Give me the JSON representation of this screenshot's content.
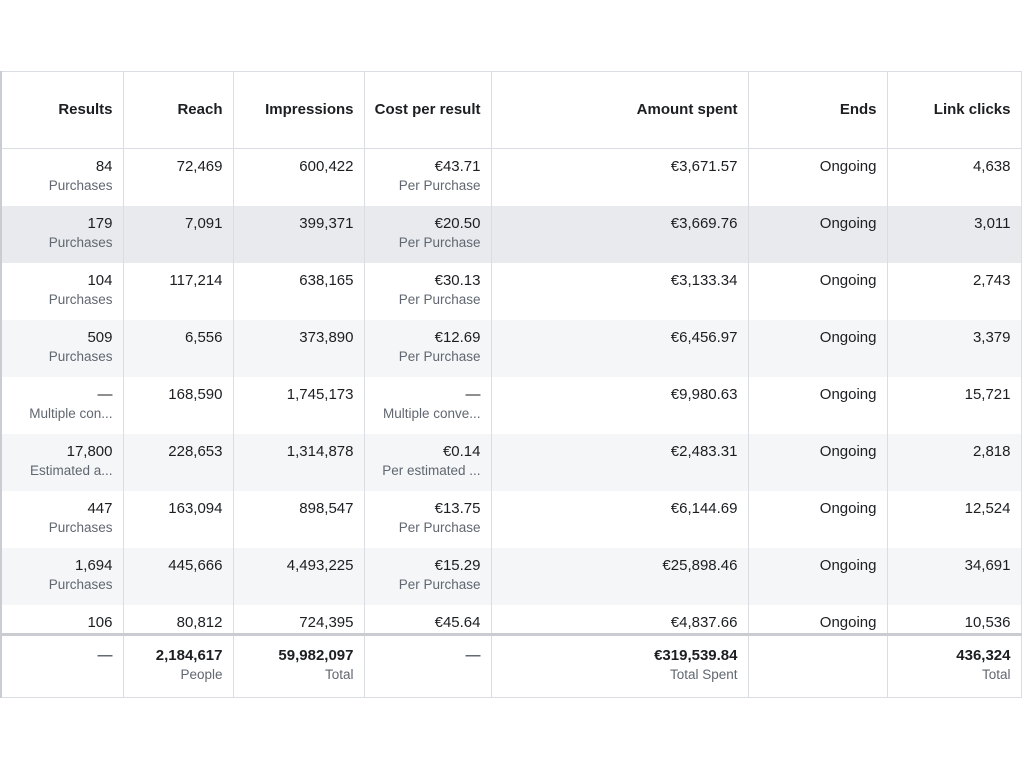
{
  "columns": [
    "Results",
    "Reach",
    "Impressions",
    "Cost per result",
    "Amount spent",
    "Ends",
    "Link clicks"
  ],
  "rows": [
    {
      "results": "84",
      "results_sub": "Purchases",
      "reach": "72,469",
      "impressions": "600,422",
      "cost": "€43.71",
      "cost_sub": "Per Purchase",
      "amount": "€3,671.57",
      "ends": "Ongoing",
      "clicks": "4,638"
    },
    {
      "results": "179",
      "results_sub": "Purchases",
      "reach": "7,091",
      "impressions": "399,371",
      "cost": "€20.50",
      "cost_sub": "Per Purchase",
      "amount": "€3,669.76",
      "ends": "Ongoing",
      "clicks": "3,011"
    },
    {
      "results": "104",
      "results_sub": "Purchases",
      "reach": "117,214",
      "impressions": "638,165",
      "cost": "€30.13",
      "cost_sub": "Per Purchase",
      "amount": "€3,133.34",
      "ends": "Ongoing",
      "clicks": "2,743"
    },
    {
      "results": "509",
      "results_sub": "Purchases",
      "reach": "6,556",
      "impressions": "373,890",
      "cost": "€12.69",
      "cost_sub": "Per Purchase",
      "amount": "€6,456.97",
      "ends": "Ongoing",
      "clicks": "3,379"
    },
    {
      "results": "—",
      "results_sub": "Multiple con...",
      "reach": "168,590",
      "impressions": "1,745,173",
      "cost": "—",
      "cost_sub": "Multiple conve...",
      "amount": "€9,980.63",
      "ends": "Ongoing",
      "clicks": "15,721"
    },
    {
      "results": "17,800",
      "results_sub": "Estimated a...",
      "reach": "228,653",
      "impressions": "1,314,878",
      "cost": "€0.14",
      "cost_sub": "Per estimated ...",
      "amount": "€2,483.31",
      "ends": "Ongoing",
      "clicks": "2,818"
    },
    {
      "results": "447",
      "results_sub": "Purchases",
      "reach": "163,094",
      "impressions": "898,547",
      "cost": "€13.75",
      "cost_sub": "Per Purchase",
      "amount": "€6,144.69",
      "ends": "Ongoing",
      "clicks": "12,524"
    },
    {
      "results": "1,694",
      "results_sub": "Purchases",
      "reach": "445,666",
      "impressions": "4,493,225",
      "cost": "€15.29",
      "cost_sub": "Per Purchase",
      "amount": "€25,898.46",
      "ends": "Ongoing",
      "clicks": "34,691"
    },
    {
      "results": "106",
      "results_sub": "",
      "reach": "80,812",
      "impressions": "724,395",
      "cost": "€45.64",
      "cost_sub": "",
      "amount": "€4,837.66",
      "ends": "Ongoing",
      "clicks": "10,536"
    }
  ],
  "totals": {
    "results": "—",
    "reach": "2,184,617",
    "reach_sub": "People",
    "impressions": "59,982,097",
    "impressions_sub": "Total",
    "cost": "—",
    "amount": "€319,539.84",
    "amount_sub": "Total Spent",
    "ends": "",
    "clicks": "436,324",
    "clicks_sub": "Total"
  },
  "highlighted_row": 1,
  "colors": {
    "highlight": "#e9eaed",
    "stripe": "#f5f6f7",
    "border": "#dadde1",
    "subtext": "#606770"
  }
}
